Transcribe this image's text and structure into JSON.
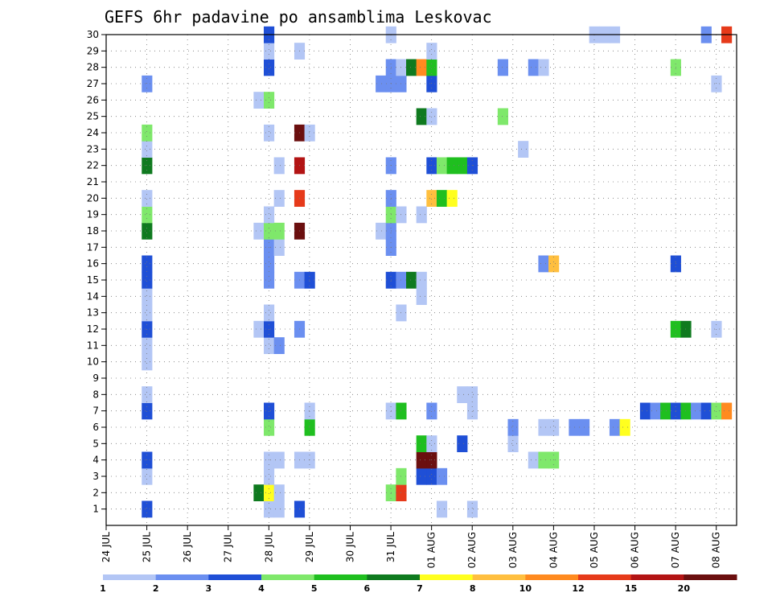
{
  "chart_data": {
    "type": "heatmap",
    "title": "GEFS 6hr padavine po ansamblima Leskovac",
    "xlabel": "",
    "ylabel": "",
    "x_unit": "6-hour step from 24 JUL 00z",
    "x_range": [
      0,
      61
    ],
    "y_range": [
      0,
      30
    ],
    "grid": true,
    "x_ticks": [
      {
        "label": "24 JUL",
        "x": 0
      },
      {
        "label": "25 JUL",
        "x": 4
      },
      {
        "label": "26 JUL",
        "x": 8
      },
      {
        "label": "27 JUL",
        "x": 12
      },
      {
        "label": "28 JUL",
        "x": 16
      },
      {
        "label": "29 JUL",
        "x": 20
      },
      {
        "label": "30 JUL",
        "x": 24
      },
      {
        "label": "31 JUL",
        "x": 28
      },
      {
        "label": "01 AUG",
        "x": 32
      },
      {
        "label": "02 AUG",
        "x": 36
      },
      {
        "label": "03 AUG",
        "x": 40
      },
      {
        "label": "04 AUG",
        "x": 44
      },
      {
        "label": "05 AUG",
        "x": 48
      },
      {
        "label": "06 AUG",
        "x": 52
      },
      {
        "label": "07 AUG",
        "x": 56
      },
      {
        "label": "08 AUG",
        "x": 60
      }
    ],
    "y_ticks": [
      "1",
      "2",
      "3",
      "4",
      "5",
      "6",
      "7",
      "8",
      "9",
      "10",
      "11",
      "12",
      "13",
      "14",
      "15",
      "16",
      "17",
      "18",
      "19",
      "20",
      "21",
      "22",
      "23",
      "24",
      "25",
      "26",
      "27",
      "28",
      "29",
      "30"
    ],
    "colorbar": {
      "labels": [
        "1",
        "2",
        "3",
        "4",
        "5",
        "6",
        "7",
        "8",
        "10",
        "12",
        "15",
        "20"
      ],
      "colors": [
        "#b3c6f5",
        "#6b8ff0",
        "#1f4fd6",
        "#7fe86b",
        "#1fbf1f",
        "#0f7a1f",
        "#ffff1f",
        "#ffbf3f",
        "#ff8a1f",
        "#e63a1a",
        "#b31414",
        "#6b0f0f"
      ]
    },
    "cells": [
      {
        "x": 4,
        "y": 1,
        "c": 2
      },
      {
        "x": 4,
        "y": 3,
        "c": 0
      },
      {
        "x": 4,
        "y": 4,
        "c": 2
      },
      {
        "x": 4,
        "y": 7,
        "c": 2
      },
      {
        "x": 4,
        "y": 8,
        "c": 0
      },
      {
        "x": 4,
        "y": 10,
        "c": 0
      },
      {
        "x": 4,
        "y": 11,
        "c": 0
      },
      {
        "x": 4,
        "y": 12,
        "c": 2
      },
      {
        "x": 4,
        "y": 13,
        "c": 0
      },
      {
        "x": 4,
        "y": 14,
        "c": 0
      },
      {
        "x": 4,
        "y": 15,
        "c": 2
      },
      {
        "x": 4,
        "y": 16,
        "c": 2
      },
      {
        "x": 4,
        "y": 18,
        "c": 5
      },
      {
        "x": 4,
        "y": 19,
        "c": 3
      },
      {
        "x": 4,
        "y": 20,
        "c": 0
      },
      {
        "x": 4,
        "y": 22,
        "c": 5
      },
      {
        "x": 4,
        "y": 23,
        "c": 0
      },
      {
        "x": 4,
        "y": 24,
        "c": 3
      },
      {
        "x": 4,
        "y": 27,
        "c": 1
      },
      {
        "x": 15,
        "y": 2,
        "c": 5
      },
      {
        "x": 15,
        "y": 12,
        "c": 0
      },
      {
        "x": 15,
        "y": 18,
        "c": 0
      },
      {
        "x": 15,
        "y": 26,
        "c": 0
      },
      {
        "x": 16,
        "y": 1,
        "c": 0
      },
      {
        "x": 16,
        "y": 2,
        "c": 6
      },
      {
        "x": 16,
        "y": 3,
        "c": 0
      },
      {
        "x": 16,
        "y": 4,
        "c": 0
      },
      {
        "x": 16,
        "y": 6,
        "c": 3
      },
      {
        "x": 16,
        "y": 7,
        "c": 2
      },
      {
        "x": 16,
        "y": 11,
        "c": 0
      },
      {
        "x": 16,
        "y": 12,
        "c": 2
      },
      {
        "x": 16,
        "y": 13,
        "c": 0
      },
      {
        "x": 16,
        "y": 15,
        "c": 1
      },
      {
        "x": 16,
        "y": 16,
        "c": 1
      },
      {
        "x": 16,
        "y": 17,
        "c": 1
      },
      {
        "x": 16,
        "y": 18,
        "c": 3
      },
      {
        "x": 16,
        "y": 19,
        "c": 0
      },
      {
        "x": 16,
        "y": 24,
        "c": 0
      },
      {
        "x": 16,
        "y": 26,
        "c": 3
      },
      {
        "x": 16,
        "y": 28,
        "c": 2
      },
      {
        "x": 16,
        "y": 29,
        "c": 0
      },
      {
        "x": 16,
        "y": 30,
        "c": 2
      },
      {
        "x": 17,
        "y": 1,
        "c": 0
      },
      {
        "x": 17,
        "y": 2,
        "c": 0
      },
      {
        "x": 17,
        "y": 4,
        "c": 0
      },
      {
        "x": 17,
        "y": 11,
        "c": 1
      },
      {
        "x": 17,
        "y": 17,
        "c": 0
      },
      {
        "x": 17,
        "y": 18,
        "c": 3
      },
      {
        "x": 17,
        "y": 20,
        "c": 0
      },
      {
        "x": 17,
        "y": 22,
        "c": 0
      },
      {
        "x": 19,
        "y": 1,
        "c": 2
      },
      {
        "x": 19,
        "y": 4,
        "c": 0
      },
      {
        "x": 19,
        "y": 12,
        "c": 1
      },
      {
        "x": 19,
        "y": 15,
        "c": 1
      },
      {
        "x": 19,
        "y": 18,
        "c": 11
      },
      {
        "x": 19,
        "y": 20,
        "c": 9
      },
      {
        "x": 19,
        "y": 22,
        "c": 10
      },
      {
        "x": 19,
        "y": 24,
        "c": 11
      },
      {
        "x": 19,
        "y": 29,
        "c": 0
      },
      {
        "x": 20,
        "y": 4,
        "c": 0
      },
      {
        "x": 20,
        "y": 6,
        "c": 4
      },
      {
        "x": 20,
        "y": 7,
        "c": 0
      },
      {
        "x": 20,
        "y": 15,
        "c": 2
      },
      {
        "x": 20,
        "y": 24,
        "c": 0
      },
      {
        "x": 27,
        "y": 18,
        "c": 0
      },
      {
        "x": 27,
        "y": 27,
        "c": 1
      },
      {
        "x": 28,
        "y": 2,
        "c": 3
      },
      {
        "x": 28,
        "y": 7,
        "c": 0
      },
      {
        "x": 28,
        "y": 15,
        "c": 2
      },
      {
        "x": 28,
        "y": 17,
        "c": 1
      },
      {
        "x": 28,
        "y": 18,
        "c": 1
      },
      {
        "x": 28,
        "y": 19,
        "c": 3
      },
      {
        "x": 28,
        "y": 20,
        "c": 1
      },
      {
        "x": 28,
        "y": 22,
        "c": 1
      },
      {
        "x": 28,
        "y": 27,
        "c": 1
      },
      {
        "x": 28,
        "y": 28,
        "c": 1
      },
      {
        "x": 28,
        "y": 30,
        "c": 0
      },
      {
        "x": 29,
        "y": 2,
        "c": 9
      },
      {
        "x": 29,
        "y": 3,
        "c": 3
      },
      {
        "x": 29,
        "y": 7,
        "c": 4
      },
      {
        "x": 29,
        "y": 13,
        "c": 0
      },
      {
        "x": 29,
        "y": 15,
        "c": 1
      },
      {
        "x": 29,
        "y": 19,
        "c": 0
      },
      {
        "x": 29,
        "y": 27,
        "c": 1
      },
      {
        "x": 29,
        "y": 28,
        "c": 0
      },
      {
        "x": 30,
        "y": 15,
        "c": 5
      },
      {
        "x": 30,
        "y": 28,
        "c": 5
      },
      {
        "x": 31,
        "y": 3,
        "c": 2
      },
      {
        "x": 31,
        "y": 4,
        "c": 11
      },
      {
        "x": 31,
        "y": 5,
        "c": 4
      },
      {
        "x": 31,
        "y": 14,
        "c": 0
      },
      {
        "x": 31,
        "y": 15,
        "c": 0
      },
      {
        "x": 31,
        "y": 19,
        "c": 0
      },
      {
        "x": 31,
        "y": 25,
        "c": 5
      },
      {
        "x": 31,
        "y": 28,
        "c": 8
      },
      {
        "x": 32,
        "y": 3,
        "c": 2
      },
      {
        "x": 32,
        "y": 4,
        "c": 11
      },
      {
        "x": 32,
        "y": 5,
        "c": 0
      },
      {
        "x": 32,
        "y": 7,
        "c": 1
      },
      {
        "x": 32,
        "y": 20,
        "c": 7
      },
      {
        "x": 32,
        "y": 22,
        "c": 2
      },
      {
        "x": 32,
        "y": 25,
        "c": 0
      },
      {
        "x": 32,
        "y": 27,
        "c": 2
      },
      {
        "x": 32,
        "y": 28,
        "c": 4
      },
      {
        "x": 32,
        "y": 29,
        "c": 0
      },
      {
        "x": 33,
        "y": 1,
        "c": 0
      },
      {
        "x": 33,
        "y": 3,
        "c": 1
      },
      {
        "x": 33,
        "y": 20,
        "c": 4
      },
      {
        "x": 33,
        "y": 22,
        "c": 3
      },
      {
        "x": 34,
        "y": 20,
        "c": 6
      },
      {
        "x": 34,
        "y": 22,
        "c": 4
      },
      {
        "x": 35,
        "y": 5,
        "c": 2
      },
      {
        "x": 35,
        "y": 8,
        "c": 0
      },
      {
        "x": 35,
        "y": 22,
        "c": 4
      },
      {
        "x": 36,
        "y": 1,
        "c": 0
      },
      {
        "x": 36,
        "y": 7,
        "c": 0
      },
      {
        "x": 36,
        "y": 8,
        "c": 0
      },
      {
        "x": 36,
        "y": 22,
        "c": 2
      },
      {
        "x": 39,
        "y": 25,
        "c": 3
      },
      {
        "x": 39,
        "y": 28,
        "c": 1
      },
      {
        "x": 40,
        "y": 5,
        "c": 0
      },
      {
        "x": 40,
        "y": 6,
        "c": 1
      },
      {
        "x": 41,
        "y": 23,
        "c": 0
      },
      {
        "x": 42,
        "y": 4,
        "c": 0
      },
      {
        "x": 42,
        "y": 28,
        "c": 1
      },
      {
        "x": 43,
        "y": 4,
        "c": 3
      },
      {
        "x": 43,
        "y": 6,
        "c": 0
      },
      {
        "x": 43,
        "y": 16,
        "c": 1
      },
      {
        "x": 43,
        "y": 28,
        "c": 0
      },
      {
        "x": 44,
        "y": 4,
        "c": 3
      },
      {
        "x": 44,
        "y": 6,
        "c": 0
      },
      {
        "x": 44,
        "y": 16,
        "c": 7
      },
      {
        "x": 46,
        "y": 6,
        "c": 1
      },
      {
        "x": 47,
        "y": 6,
        "c": 1
      },
      {
        "x": 48,
        "y": 30,
        "c": 0
      },
      {
        "x": 49,
        "y": 30,
        "c": 0
      },
      {
        "x": 50,
        "y": 6,
        "c": 1
      },
      {
        "x": 50,
        "y": 30,
        "c": 0
      },
      {
        "x": 51,
        "y": 6,
        "c": 6
      },
      {
        "x": 53,
        "y": 7,
        "c": 2
      },
      {
        "x": 54,
        "y": 7,
        "c": 1
      },
      {
        "x": 55,
        "y": 7,
        "c": 4
      },
      {
        "x": 56,
        "y": 7,
        "c": 2
      },
      {
        "x": 56,
        "y": 12,
        "c": 4
      },
      {
        "x": 56,
        "y": 16,
        "c": 2
      },
      {
        "x": 56,
        "y": 28,
        "c": 3
      },
      {
        "x": 57,
        "y": 7,
        "c": 4
      },
      {
        "x": 57,
        "y": 12,
        "c": 5
      },
      {
        "x": 58,
        "y": 7,
        "c": 1
      },
      {
        "x": 59,
        "y": 7,
        "c": 2
      },
      {
        "x": 59,
        "y": 30,
        "c": 1
      },
      {
        "x": 60,
        "y": 7,
        "c": 3
      },
      {
        "x": 60,
        "y": 12,
        "c": 0
      },
      {
        "x": 60,
        "y": 27,
        "c": 0
      },
      {
        "x": 61,
        "y": 7,
        "c": 8
      },
      {
        "x": 61,
        "y": 30,
        "c": 9
      }
    ]
  }
}
